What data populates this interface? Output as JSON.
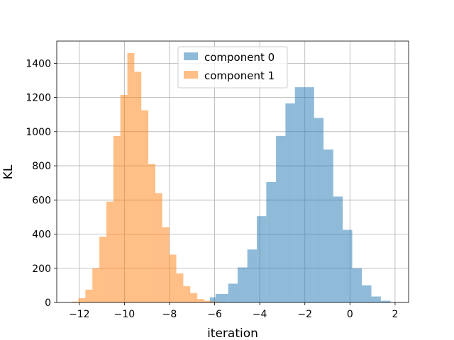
{
  "chart_data": {
    "type": "bar",
    "title": "",
    "xlabel": "iteration",
    "ylabel": "KL",
    "xlim": [
      -13.0,
      2.6
    ],
    "ylim": [
      0,
      1530
    ],
    "xticks": [
      -12,
      -10,
      -8,
      -6,
      -4,
      -2,
      0,
      2
    ],
    "xtick_labels": [
      "−12",
      "−10",
      "−8",
      "−6",
      "−4",
      "−2",
      "0",
      "2"
    ],
    "yticks": [
      0,
      200,
      400,
      600,
      800,
      1000,
      1200,
      1400
    ],
    "ytick_labels": [
      "0",
      "200",
      "400",
      "600",
      "800",
      "1000",
      "1200",
      "1400"
    ],
    "grid": true,
    "legend_position": "upper center",
    "series": [
      {
        "name": "component 0",
        "color": "#1f77b4",
        "alpha": 0.5,
        "bins": [
          {
            "x0": -6.21,
            "x1": -5.96,
            "value": 30
          },
          {
            "x0": -5.96,
            "x1": -5.4,
            "value": 50
          },
          {
            "x0": -5.4,
            "x1": -4.98,
            "value": 110
          },
          {
            "x0": -4.98,
            "x1": -4.55,
            "value": 205
          },
          {
            "x0": -4.55,
            "x1": -4.13,
            "value": 310
          },
          {
            "x0": -4.13,
            "x1": -3.71,
            "value": 505
          },
          {
            "x0": -3.71,
            "x1": -3.28,
            "value": 705
          },
          {
            "x0": -3.28,
            "x1": -2.86,
            "value": 975
          },
          {
            "x0": -2.86,
            "x1": -2.44,
            "value": 1165
          },
          {
            "x0": -2.44,
            "x1": -2.01,
            "value": 1260
          },
          {
            "x0": -2.01,
            "x1": -1.59,
            "value": 1260
          },
          {
            "x0": -1.59,
            "x1": -1.17,
            "value": 1080
          },
          {
            "x0": -1.17,
            "x1": -0.74,
            "value": 895
          },
          {
            "x0": -0.74,
            "x1": -0.32,
            "value": 620
          },
          {
            "x0": -0.32,
            "x1": 0.1,
            "value": 425
          },
          {
            "x0": 0.1,
            "x1": 0.53,
            "value": 200
          },
          {
            "x0": 0.53,
            "x1": 0.95,
            "value": 100
          },
          {
            "x0": 0.95,
            "x1": 1.37,
            "value": 35
          },
          {
            "x0": 1.37,
            "x1": 1.8,
            "value": 10
          }
        ]
      },
      {
        "name": "component 1",
        "color": "#ff7f0e",
        "alpha": 0.5,
        "bins": [
          {
            "x0": -12.34,
            "x1": -12.04,
            "value": 5
          },
          {
            "x0": -12.04,
            "x1": -11.73,
            "value": 25
          },
          {
            "x0": -11.73,
            "x1": -11.42,
            "value": 75
          },
          {
            "x0": -11.42,
            "x1": -11.11,
            "value": 200
          },
          {
            "x0": -11.11,
            "x1": -10.8,
            "value": 385
          },
          {
            "x0": -10.8,
            "x1": -10.49,
            "value": 590
          },
          {
            "x0": -10.49,
            "x1": -10.18,
            "value": 975
          },
          {
            "x0": -10.18,
            "x1": -9.87,
            "value": 1215
          },
          {
            "x0": -9.87,
            "x1": -9.56,
            "value": 1460
          },
          {
            "x0": -9.56,
            "x1": -9.25,
            "value": 1350
          },
          {
            "x0": -9.25,
            "x1": -8.94,
            "value": 1125
          },
          {
            "x0": -8.94,
            "x1": -8.63,
            "value": 810
          },
          {
            "x0": -8.63,
            "x1": -8.32,
            "value": 640
          },
          {
            "x0": -8.32,
            "x1": -8.01,
            "value": 440
          },
          {
            "x0": -8.01,
            "x1": -7.7,
            "value": 280
          },
          {
            "x0": -7.7,
            "x1": -7.39,
            "value": 170
          },
          {
            "x0": -7.39,
            "x1": -7.08,
            "value": 95
          },
          {
            "x0": -7.08,
            "x1": -6.77,
            "value": 55
          },
          {
            "x0": -6.77,
            "x1": -6.46,
            "value": 20
          },
          {
            "x0": -6.46,
            "x1": -6.15,
            "value": 10
          },
          {
            "x0": -6.15,
            "x1": -5.84,
            "value": 5
          }
        ]
      }
    ]
  }
}
